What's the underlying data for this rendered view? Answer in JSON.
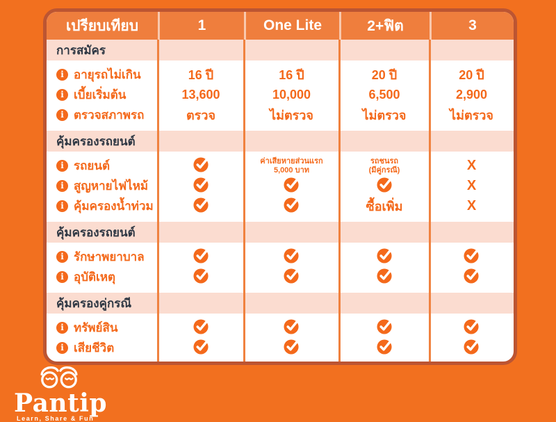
{
  "table": {
    "header": {
      "compare_label": "เปรียบเทียบ",
      "columns": [
        "1",
        "One Lite",
        "2+ฟิต",
        "3"
      ]
    },
    "marks": {
      "cross": "X"
    },
    "sections": [
      {
        "title": "การสมัคร",
        "rows": [
          {
            "label": "อายุรถไม่เกิน",
            "cells": [
              {
                "type": "text",
                "text": "16 ปี"
              },
              {
                "type": "text",
                "text": "16 ปี"
              },
              {
                "type": "text",
                "text": "20 ปี"
              },
              {
                "type": "text",
                "text": "20 ปี"
              }
            ]
          },
          {
            "label": "เบี้ยเริ่มต้น",
            "cells": [
              {
                "type": "text",
                "text": "13,600"
              },
              {
                "type": "text",
                "text": "10,000"
              },
              {
                "type": "text",
                "text": "6,500"
              },
              {
                "type": "text",
                "text": "2,900"
              }
            ]
          },
          {
            "label": "ตรวจสภาพรถ",
            "cells": [
              {
                "type": "text",
                "text": "ตรวจ"
              },
              {
                "type": "text",
                "text": "ไม่ตรวจ"
              },
              {
                "type": "text",
                "text": "ไม่ตรวจ"
              },
              {
                "type": "text",
                "text": "ไม่ตรวจ"
              }
            ]
          }
        ]
      },
      {
        "title": "คุ้มครองรถยนต์",
        "rows": [
          {
            "label": "รถยนต์",
            "cells": [
              {
                "type": "check"
              },
              {
                "type": "small",
                "lines": [
                  "ค่าเสียหายส่วนแรก",
                  "5,000 บาท"
                ]
              },
              {
                "type": "small",
                "lines": [
                  "รถชนรถ",
                  "(มีคู่กรณี)"
                ]
              },
              {
                "type": "cross"
              }
            ]
          },
          {
            "label": "สูญหายไฟไหม้",
            "cells": [
              {
                "type": "check"
              },
              {
                "type": "check"
              },
              {
                "type": "check"
              },
              {
                "type": "cross"
              }
            ]
          },
          {
            "label": "คุ้มครองน้ำท่วม",
            "cells": [
              {
                "type": "check"
              },
              {
                "type": "check"
              },
              {
                "type": "text",
                "text": "ซื้อเพิ่ม"
              },
              {
                "type": "cross"
              }
            ]
          }
        ]
      },
      {
        "title": "คุ้มครองรถยนต์",
        "rows": [
          {
            "label": "รักษาพยาบาล",
            "cells": [
              {
                "type": "check"
              },
              {
                "type": "check"
              },
              {
                "type": "check"
              },
              {
                "type": "check"
              }
            ]
          },
          {
            "label": "อุบัติเหตุ",
            "cells": [
              {
                "type": "check"
              },
              {
                "type": "check"
              },
              {
                "type": "check"
              },
              {
                "type": "check"
              }
            ]
          }
        ]
      },
      {
        "title": "คุ้มครองคู่กรณี",
        "rows": [
          {
            "label": "ทรัพย์สิน",
            "cells": [
              {
                "type": "check"
              },
              {
                "type": "check"
              },
              {
                "type": "check"
              },
              {
                "type": "check"
              }
            ]
          },
          {
            "label": "เสียชีวิต",
            "cells": [
              {
                "type": "check"
              },
              {
                "type": "check"
              },
              {
                "type": "check"
              },
              {
                "type": "check"
              }
            ]
          }
        ]
      }
    ]
  },
  "logo": {
    "wordmark": "Pantip",
    "tagline": "Learn, Share & Fun"
  },
  "colors": {
    "page_bg": "#F2701F",
    "card_border": "#BC5532",
    "header_band": "#EF7E3D",
    "section_band": "#FBDCD0",
    "section_text": "#2F3844",
    "accent_orange": "#F4691B",
    "divider_orange": "#F0823F"
  }
}
